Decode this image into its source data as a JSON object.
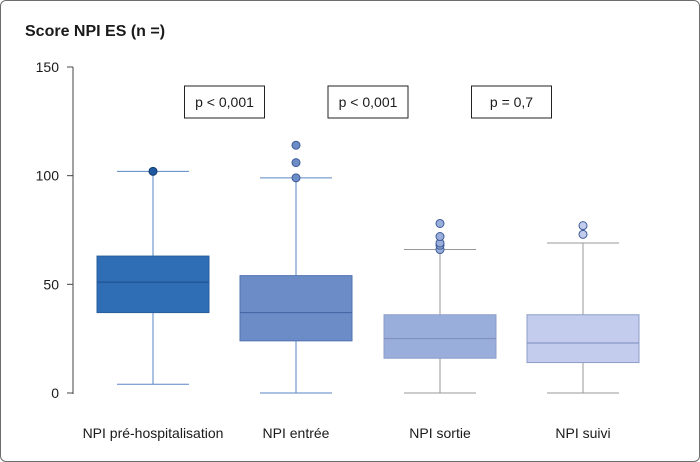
{
  "chart_data": {
    "type": "box",
    "title": "Score NPI ES (n =)",
    "ylim": [
      0,
      150
    ],
    "yticks": [
      0,
      50,
      100,
      150
    ],
    "grid": false,
    "categories": [
      "NPI pré-hospitalisation",
      "NPI entrée",
      "NPI sortie",
      "NPI suivi"
    ],
    "boxes": [
      {
        "category": "NPI pré-hospitalisation",
        "min": 4,
        "q1": 37,
        "median": 51,
        "q3": 63,
        "max": 102,
        "outliers": [
          102
        ],
        "color": "#2f6db5"
      },
      {
        "category": "NPI entrée",
        "min": 0,
        "q1": 24,
        "median": 37,
        "q3": 54,
        "max": 99,
        "outliers": [
          99,
          106,
          114
        ],
        "color": "#6c8cc8"
      },
      {
        "category": "NPI sortie",
        "min": 0,
        "q1": 16,
        "median": 25,
        "q3": 36,
        "max": 66,
        "outliers": [
          66,
          68,
          69,
          72,
          78
        ],
        "color": "#9aaedb"
      },
      {
        "category": "NPI suivi",
        "min": 0,
        "q1": 14,
        "median": 23,
        "q3": 36,
        "max": 69,
        "outliers": [
          73,
          77
        ],
        "color": "#c3ccec"
      }
    ],
    "annotations": [
      "p < 0,001",
      "p < 0,001",
      "p = 0,7"
    ]
  }
}
